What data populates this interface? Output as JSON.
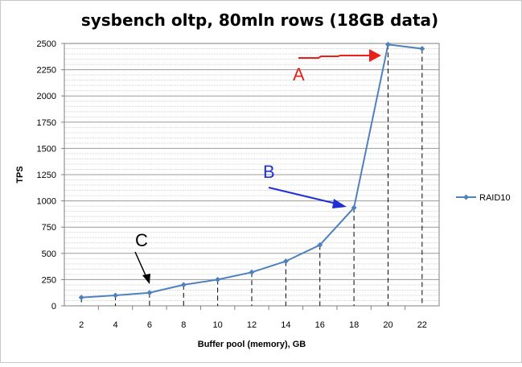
{
  "chart_data": {
    "type": "line",
    "title": "sysbench oltp, 80mln rows (18GB data)",
    "xlabel": "Buffer pool (memory), GB",
    "ylabel": "TPS",
    "x": [
      2,
      4,
      6,
      8,
      10,
      12,
      14,
      16,
      18,
      20,
      22
    ],
    "categories": [
      "2",
      "4",
      "6",
      "8",
      "10",
      "12",
      "14",
      "16",
      "18",
      "20",
      "22"
    ],
    "series": [
      {
        "name": "RAID10",
        "values": [
          80,
          100,
          125,
          200,
          250,
          320,
          425,
          580,
          935,
          2490,
          2450
        ],
        "color": "#4f81bd"
      }
    ],
    "ylim": [
      0,
      2500
    ],
    "y_ticks": [
      "0",
      "250",
      "500",
      "750",
      "1000",
      "1250",
      "1500",
      "1750",
      "2000",
      "2250",
      "2500"
    ],
    "grid": true,
    "legend_position": "right",
    "annotations": [
      {
        "label": "A",
        "color": "#e8211b"
      },
      {
        "label": "B",
        "color": "#1f2fd6"
      },
      {
        "label": "C",
        "color": "#000000"
      }
    ]
  }
}
